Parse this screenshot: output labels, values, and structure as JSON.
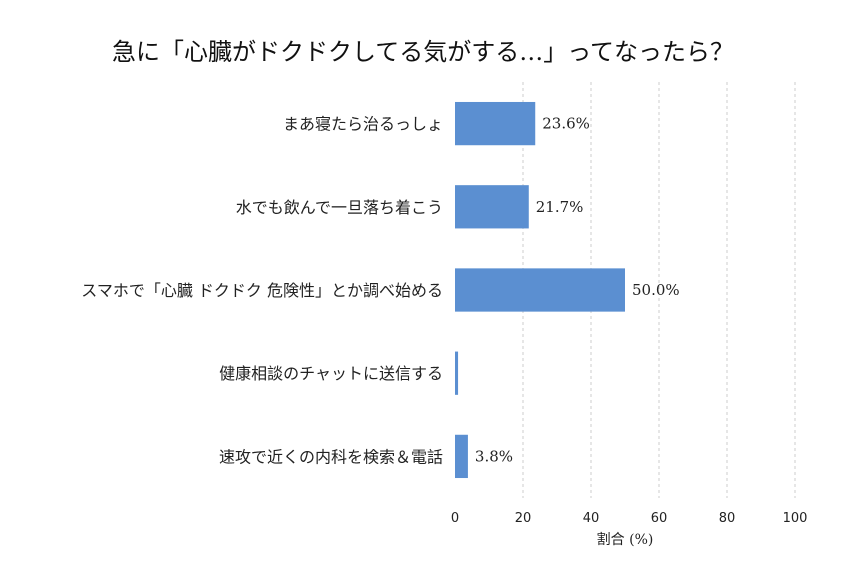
{
  "chart_data": {
    "type": "bar",
    "orientation": "horizontal",
    "title": "急に「心臓がドクドクしてる気がする…」ってなったら？",
    "xlabel": "割合 (%)",
    "ylabel": "",
    "xlim": [
      0,
      100
    ],
    "xticks": [
      0,
      20,
      40,
      60,
      80,
      100
    ],
    "grid": true,
    "categories": [
      "まあ寝たら治るっしょ",
      "水でも飲んで一旦落ち着こう",
      "スマホで「心臓 ドクドク 危険性」とか調べ始める",
      "健康相談のチャットに送信する",
      "速攻で近くの内科を検索＆電話"
    ],
    "values": [
      23.6,
      21.7,
      50.0,
      0.9,
      3.8
    ],
    "data_labels": [
      "23.6%",
      "21.7%",
      "50.0%",
      "",
      "3.8%"
    ],
    "bar_color": "#5b8fd1"
  }
}
